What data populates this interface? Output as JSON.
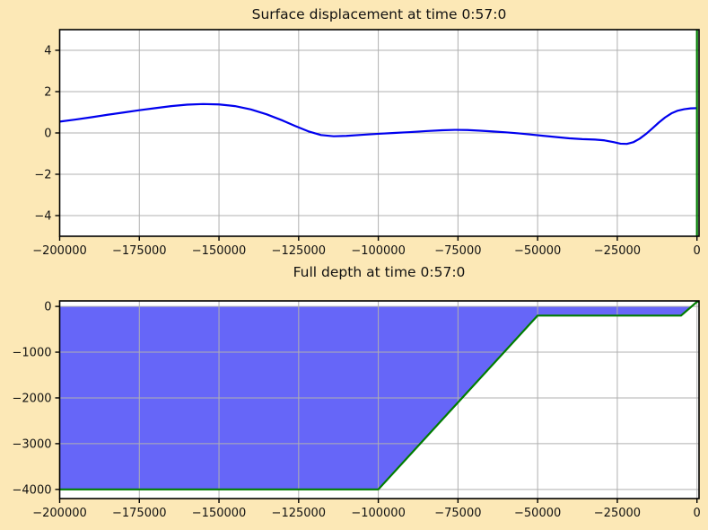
{
  "figure": {
    "background_color": "#fce8b6",
    "plot_background_color": "#ffffff",
    "grid_color": "#b0b0b0",
    "spine_color": "#000000",
    "text_color": "#111111",
    "time_shown": "0:57:0"
  },
  "chart_data": [
    {
      "type": "line",
      "title": "Surface displacement at time 0:57:0",
      "xlabel": "",
      "ylabel": "",
      "xlim": [
        -200000,
        650
      ],
      "ylim": [
        -5,
        5
      ],
      "grid": true,
      "legend": "none",
      "xticks": [
        -200000,
        -175000,
        -150000,
        -125000,
        -100000,
        -75000,
        -50000,
        -25000,
        0
      ],
      "xtick_labels": [
        "−200000",
        "−175000",
        "−150000",
        "−125000",
        "−100000",
        "−75000",
        "−50000",
        "−25000",
        "0"
      ],
      "yticks": [
        -4,
        -2,
        0,
        2,
        4
      ],
      "ytick_labels": [
        "−4",
        "−2",
        "0",
        "2",
        "4"
      ],
      "series": [
        {
          "name": "surface-displacement",
          "color": "#0000ee",
          "width": 2.2,
          "points": [
            [
              -200000,
              0.55
            ],
            [
              -195000,
              0.65
            ],
            [
              -190000,
              0.76
            ],
            [
              -185000,
              0.88
            ],
            [
              -180000,
              0.99
            ],
            [
              -175000,
              1.1
            ],
            [
              -170000,
              1.2
            ],
            [
              -165000,
              1.3
            ],
            [
              -160000,
              1.37
            ],
            [
              -155000,
              1.4
            ],
            [
              -150000,
              1.38
            ],
            [
              -145000,
              1.3
            ],
            [
              -140000,
              1.14
            ],
            [
              -135000,
              0.9
            ],
            [
              -130000,
              0.6
            ],
            [
              -126000,
              0.33
            ],
            [
              -122000,
              0.08
            ],
            [
              -118000,
              -0.1
            ],
            [
              -114000,
              -0.16
            ],
            [
              -110000,
              -0.14
            ],
            [
              -105000,
              -0.09
            ],
            [
              -100000,
              -0.04
            ],
            [
              -95000,
              0.0
            ],
            [
              -90000,
              0.04
            ],
            [
              -85000,
              0.09
            ],
            [
              -80000,
              0.13
            ],
            [
              -76000,
              0.15
            ],
            [
              -72000,
              0.14
            ],
            [
              -68000,
              0.11
            ],
            [
              -64000,
              0.07
            ],
            [
              -60000,
              0.03
            ],
            [
              -56000,
              -0.02
            ],
            [
              -52000,
              -0.08
            ],
            [
              -48000,
              -0.14
            ],
            [
              -44000,
              -0.2
            ],
            [
              -40000,
              -0.26
            ],
            [
              -36000,
              -0.3
            ],
            [
              -32000,
              -0.32
            ],
            [
              -29000,
              -0.36
            ],
            [
              -26000,
              -0.45
            ],
            [
              -24000,
              -0.52
            ],
            [
              -22000,
              -0.53
            ],
            [
              -20000,
              -0.45
            ],
            [
              -18000,
              -0.28
            ],
            [
              -16000,
              -0.05
            ],
            [
              -14000,
              0.22
            ],
            [
              -12000,
              0.5
            ],
            [
              -10000,
              0.75
            ],
            [
              -8000,
              0.95
            ],
            [
              -6000,
              1.08
            ],
            [
              -4000,
              1.15
            ],
            [
              -2000,
              1.19
            ],
            [
              0,
              1.2
            ]
          ]
        },
        {
          "name": "shoreline-marker",
          "color": "#007d00",
          "width": 2.2,
          "points": [
            [
              0,
              -5
            ],
            [
              0,
              5
            ]
          ]
        }
      ]
    },
    {
      "type": "area",
      "title": "Full depth at time 0:57:0",
      "xlabel": "",
      "ylabel": "",
      "xlim": [
        -200000,
        650
      ],
      "ylim": [
        -4200,
        120
      ],
      "grid": true,
      "legend": "none",
      "xticks": [
        -200000,
        -175000,
        -150000,
        -125000,
        -100000,
        -75000,
        -50000,
        -25000,
        0
      ],
      "xtick_labels": [
        "−200000",
        "−175000",
        "−150000",
        "−125000",
        "−100000",
        "−75000",
        "−50000",
        "−25000",
        "0"
      ],
      "yticks": [
        0,
        -1000,
        -2000,
        -3000,
        -4000
      ],
      "ytick_labels": [
        "0",
        "−1000",
        "−2000",
        "−3000",
        "−4000"
      ],
      "fills": [
        {
          "name": "water-fill",
          "color": "#6666f8",
          "points": [
            [
              -200000,
              0
            ],
            [
              -1667,
              0
            ],
            [
              -5000,
              -200
            ],
            [
              -50000,
              -200
            ],
            [
              -100000,
              -4000
            ],
            [
              -200000,
              -4000
            ]
          ]
        }
      ],
      "series": [
        {
          "name": "bathymetry",
          "color": "#007d00",
          "width": 2.2,
          "points": [
            [
              -200000,
              -4000
            ],
            [
              -100000,
              -4000
            ],
            [
              -50000,
              -200
            ],
            [
              -5000,
              -200
            ],
            [
              0,
              100
            ],
            [
              650,
              113
            ]
          ]
        }
      ]
    }
  ]
}
